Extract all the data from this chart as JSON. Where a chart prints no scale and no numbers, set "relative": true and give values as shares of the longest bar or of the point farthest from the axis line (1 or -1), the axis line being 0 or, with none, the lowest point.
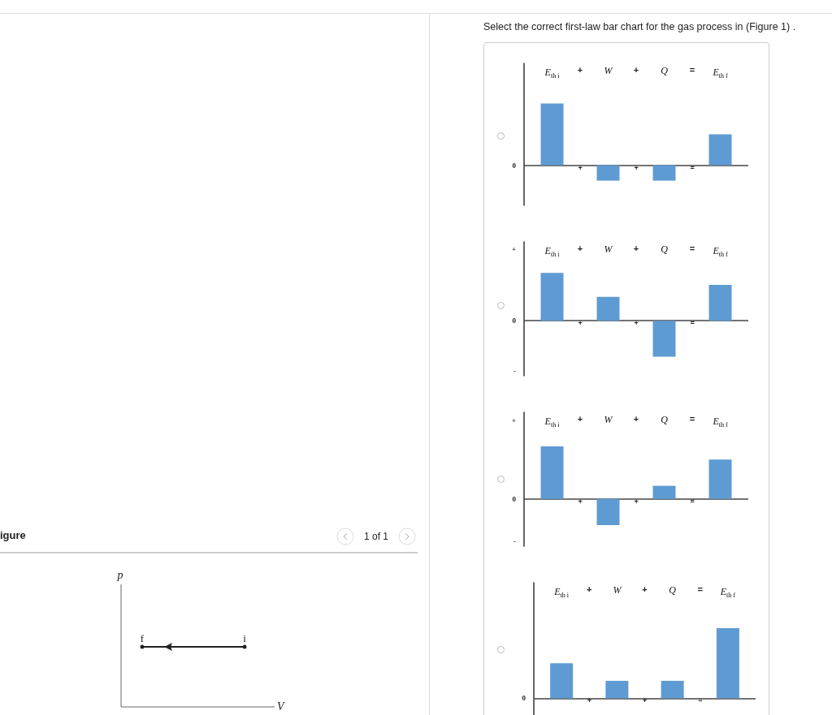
{
  "chart_data": [
    {
      "type": "bar",
      "title": "Select the correct first-law bar chart for the gas process in (Figure 1) .",
      "relative": true,
      "categories": [
        "E$_{th i}$",
        "W",
        "Q",
        "E$_{th f}$"
      ],
      "values": [
        1,
        -0.25,
        -0.25,
        0.5
      ],
      "color": "#5e9bd3",
      "annotations": [
        "+",
        "+",
        "=",
        "+",
        "+",
        "=",
        "0"
      ]
    },
    {
      "type": "bar",
      "relative": true,
      "categories": [
        "E$_{th i}$",
        "W",
        "Q",
        "E$_{th f}$"
      ],
      "values": [
        1,
        0.5,
        -0.75,
        0.75
      ],
      "color": "#5e9bd3",
      "annotations": [
        "+",
        "+",
        "=",
        "+",
        "+",
        "=",
        "+",
        "0",
        "-"
      ]
    },
    {
      "type": "bar",
      "relative": true,
      "categories": [
        "E$_{th i}$",
        "W",
        "Q",
        "E$_{th f}$"
      ],
      "values": [
        1,
        -0.5,
        0.25,
        0.75
      ],
      "color": "#5e9bd3",
      "annotations": [
        "+",
        "+",
        "=",
        "+",
        "+",
        "=",
        "+",
        "0",
        "-"
      ]
    },
    {
      "type": "bar",
      "relative": true,
      "categories": [
        "E$_{th i}$",
        "W",
        "Q",
        "E$_{th f}$"
      ],
      "values": [
        0.5,
        0.25,
        0.25,
        1
      ],
      "color": "#5e9bd3",
      "annotations": [
        "+",
        "+",
        "=",
        "+",
        "+",
        "=",
        "0"
      ]
    },
    {
      "type": "other",
      "title": "igure",
      "xlabel": "V",
      "ylabel": "p",
      "annotations": [
        "1 of 1",
        "f",
        "i"
      ]
    }
  ]
}
